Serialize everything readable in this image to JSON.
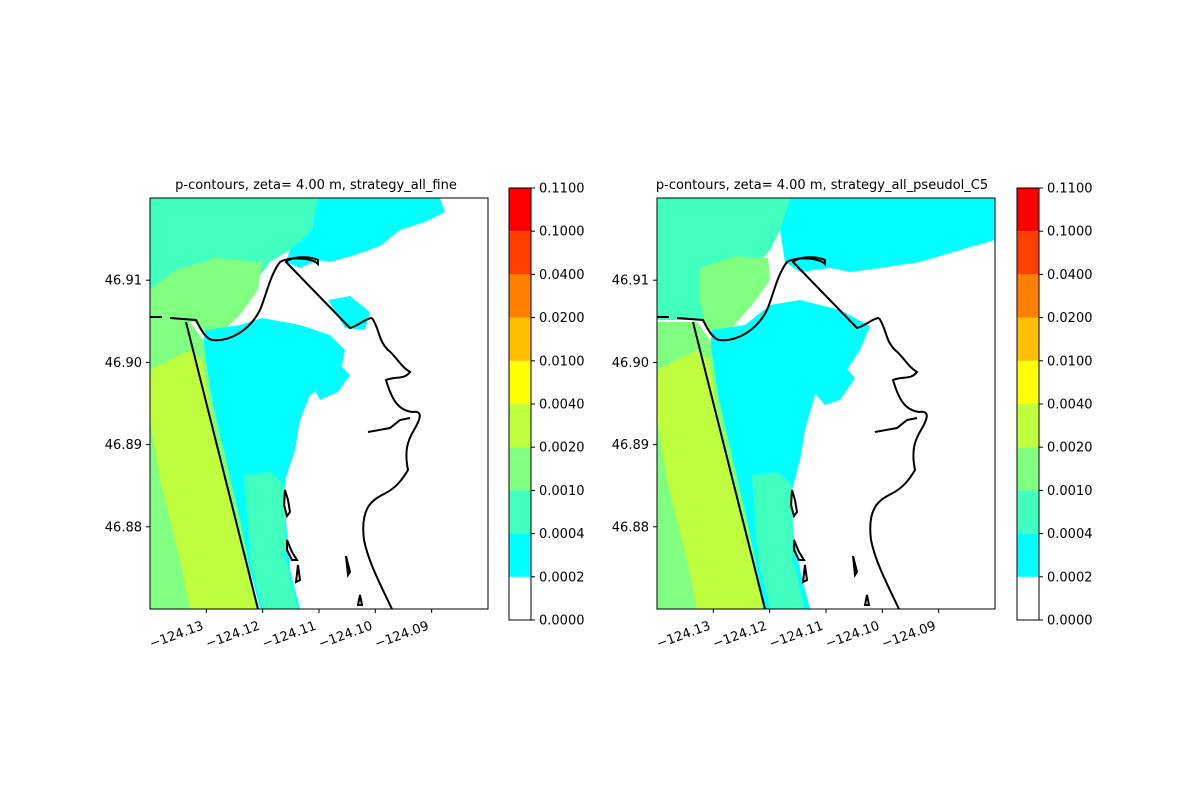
{
  "chart_data": [
    {
      "type": "heatmap",
      "title": "p-contours, zeta= 4.00 m, strategy_all_fine",
      "xlabel": "",
      "ylabel": "",
      "x_ticks": [
        "−124.13",
        "−124.12",
        "−124.11",
        "−124.10",
        "−124.09"
      ],
      "x_tick_values": [
        -124.13,
        -124.12,
        -124.11,
        -124.1,
        -124.09
      ],
      "y_ticks": [
        "46.91",
        "46.90",
        "46.89",
        "46.88"
      ],
      "y_tick_values": [
        46.91,
        46.9,
        46.89,
        46.88
      ],
      "xlim": [
        -124.14,
        -124.08
      ],
      "ylim": [
        46.87,
        46.92
      ],
      "grid": false,
      "colorbar": {
        "levels": [
          "0.0000",
          "0.0002",
          "0.0004",
          "0.0010",
          "0.0020",
          "0.0040",
          "0.0100",
          "0.0200",
          "0.0400",
          "0.1000",
          "0.1100"
        ],
        "colors": [
          "#ffffff",
          "#00ffff",
          "#40ffbf",
          "#80ff80",
          "#bfff40",
          "#ffff00",
          "#ffbf00",
          "#ff8000",
          "#ff4000",
          "#ff0000"
        ]
      }
    },
    {
      "type": "heatmap",
      "title": "p-contours, zeta= 4.00 m, strategy_all_pseudol_C5",
      "xlabel": "",
      "ylabel": "",
      "x_ticks": [
        "−124.13",
        "−124.12",
        "−124.11",
        "−124.10",
        "−124.09"
      ],
      "x_tick_values": [
        -124.13,
        -124.12,
        -124.11,
        -124.1,
        -124.09
      ],
      "y_ticks": [
        "46.91",
        "46.90",
        "46.89",
        "46.88"
      ],
      "y_tick_values": [
        46.91,
        46.9,
        46.89,
        46.88
      ],
      "xlim": [
        -124.14,
        -124.08
      ],
      "ylim": [
        46.87,
        46.92
      ],
      "grid": false,
      "colorbar": {
        "levels": [
          "0.0000",
          "0.0002",
          "0.0004",
          "0.0010",
          "0.0020",
          "0.0040",
          "0.0100",
          "0.0200",
          "0.0400",
          "0.1000",
          "0.1100"
        ],
        "colors": [
          "#ffffff",
          "#00ffff",
          "#40ffbf",
          "#80ff80",
          "#bfff40",
          "#ffff00",
          "#ffbf00",
          "#ff8000",
          "#ff4000",
          "#ff0000"
        ]
      }
    }
  ]
}
